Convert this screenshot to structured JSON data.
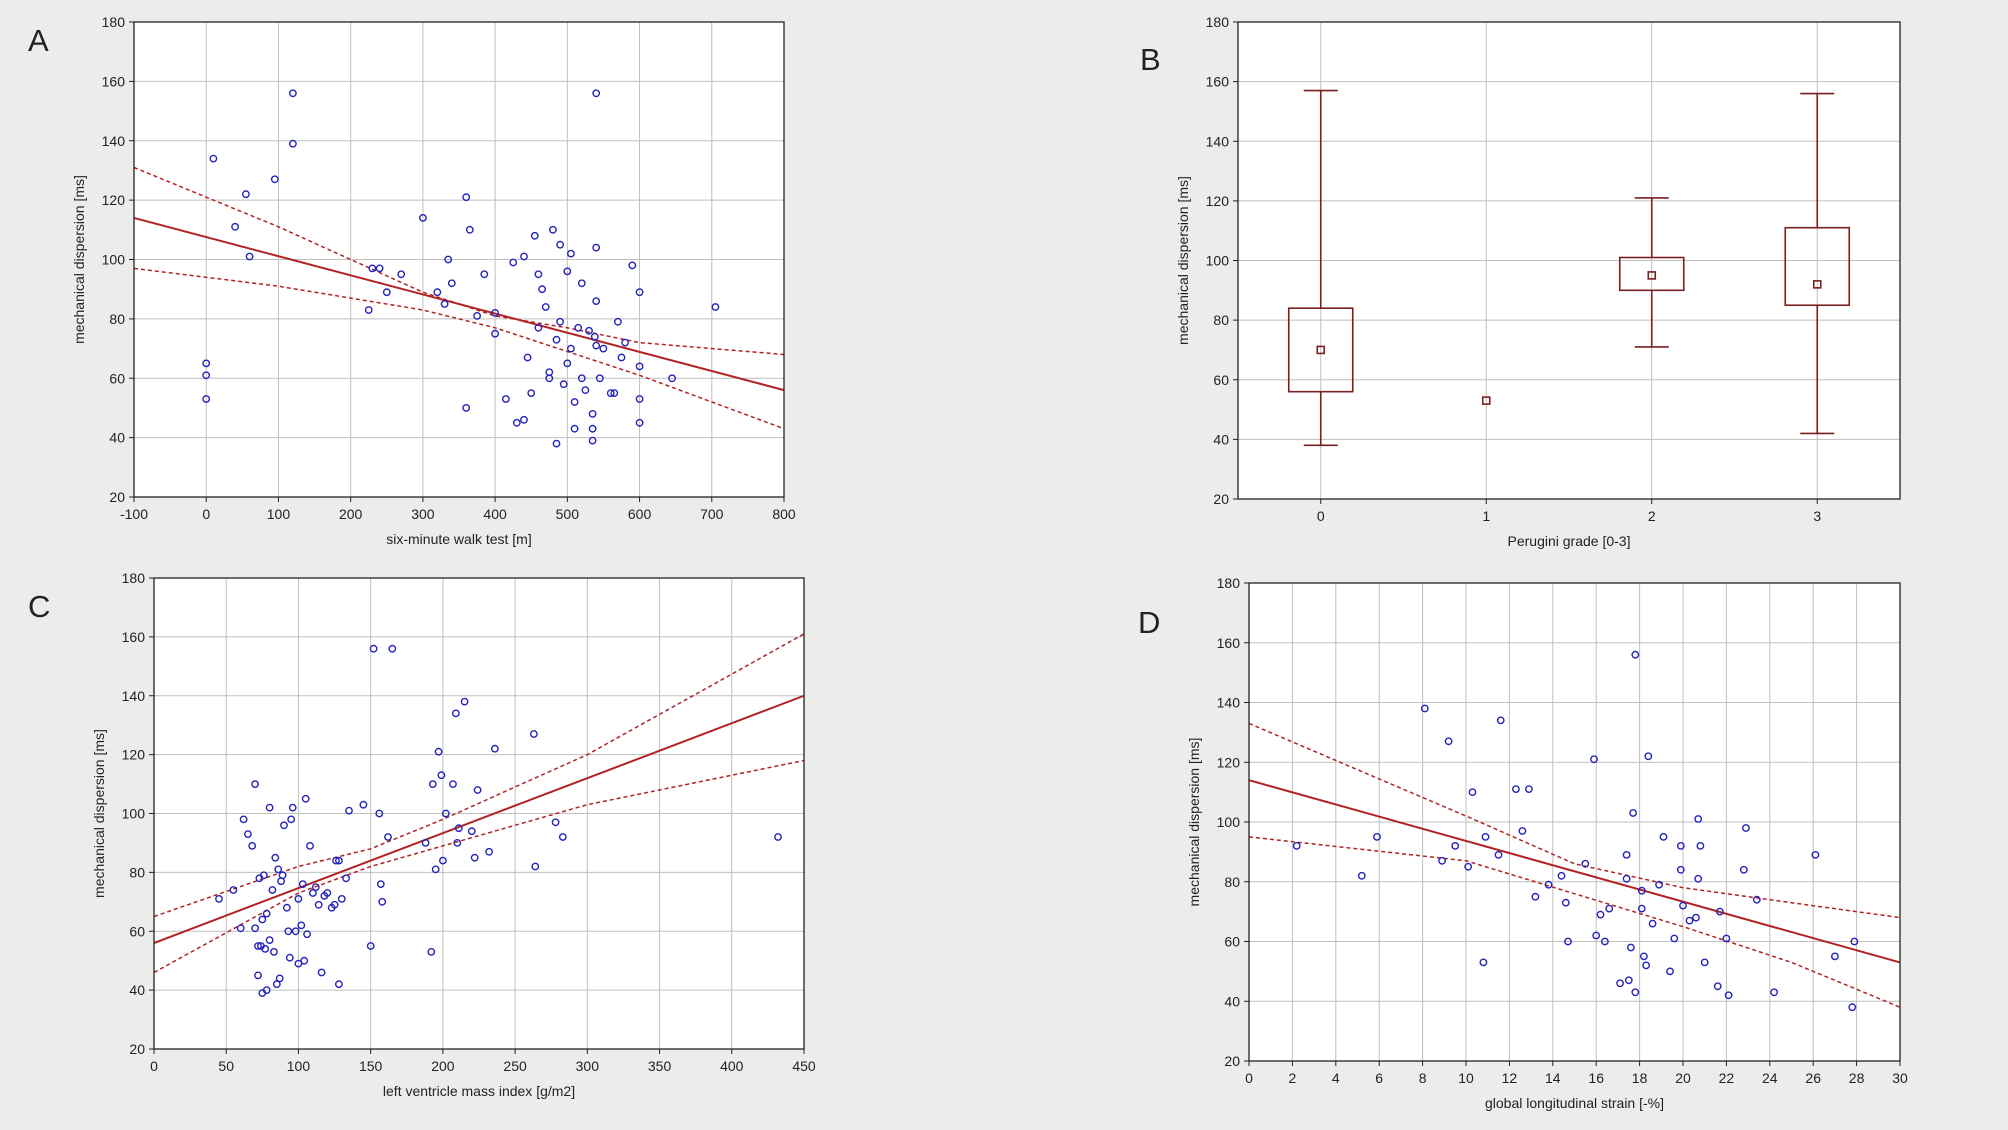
{
  "colors": {
    "background": "#ececea",
    "plot_area": "#ffffff",
    "frame": "#222222",
    "grid": "#bfbfbf",
    "points": "#2222bb",
    "fit_line": "#b22222",
    "boxplot": "#7a1f1f"
  },
  "chart_data": [
    {
      "panel": "A",
      "type": "scatter",
      "title": "",
      "xlabel": "six-minute walk test [m]",
      "ylabel": "mechanical dispersion [ms]",
      "xlim": [
        -100,
        800
      ],
      "ylim": [
        20,
        180
      ],
      "xticks": [
        -100,
        0,
        100,
        200,
        300,
        400,
        500,
        600,
        700,
        800
      ],
      "yticks": [
        20,
        40,
        60,
        80,
        100,
        120,
        140,
        160,
        180
      ],
      "grid": true,
      "legend": "none",
      "regression": {
        "x_range": [
          -100,
          800
        ],
        "y_start": 114,
        "y_end": 56
      },
      "confidence_band": {
        "upper": [
          [
            -100,
            131
          ],
          [
            100,
            111
          ],
          [
            300,
            89
          ],
          [
            400,
            81
          ],
          [
            500,
            77
          ],
          [
            600,
            72
          ],
          [
            800,
            68
          ]
        ],
        "lower": [
          [
            -100,
            97
          ],
          [
            100,
            91
          ],
          [
            300,
            83
          ],
          [
            400,
            77
          ],
          [
            500,
            69
          ],
          [
            600,
            61
          ],
          [
            800,
            43
          ]
        ]
      },
      "points": [
        [
          0,
          65
        ],
        [
          0,
          61
        ],
        [
          0,
          53
        ],
        [
          10,
          134
        ],
        [
          40,
          111
        ],
        [
          55,
          122
        ],
        [
          60,
          101
        ],
        [
          95,
          127
        ],
        [
          120,
          139
        ],
        [
          120,
          156
        ],
        [
          225,
          83
        ],
        [
          230,
          97
        ],
        [
          240,
          97
        ],
        [
          250,
          89
        ],
        [
          270,
          95
        ],
        [
          300,
          114
        ],
        [
          320,
          89
        ],
        [
          330,
          85
        ],
        [
          335,
          100
        ],
        [
          340,
          92
        ],
        [
          360,
          50
        ],
        [
          360,
          121
        ],
        [
          365,
          110
        ],
        [
          375,
          81
        ],
        [
          385,
          95
        ],
        [
          400,
          82
        ],
        [
          400,
          75
        ],
        [
          415,
          53
        ],
        [
          425,
          99
        ],
        [
          430,
          45
        ],
        [
          440,
          46
        ],
        [
          440,
          101
        ],
        [
          445,
          67
        ],
        [
          450,
          55
        ],
        [
          455,
          108
        ],
        [
          460,
          77
        ],
        [
          460,
          95
        ],
        [
          465,
          90
        ],
        [
          470,
          84
        ],
        [
          475,
          60
        ],
        [
          475,
          62
        ],
        [
          480,
          110
        ],
        [
          485,
          38
        ],
        [
          485,
          73
        ],
        [
          490,
          105
        ],
        [
          490,
          79
        ],
        [
          495,
          58
        ],
        [
          500,
          96
        ],
        [
          500,
          65
        ],
        [
          505,
          102
        ],
        [
          505,
          70
        ],
        [
          510,
          52
        ],
        [
          510,
          43
        ],
        [
          515,
          77
        ],
        [
          520,
          92
        ],
        [
          520,
          60
        ],
        [
          525,
          56
        ],
        [
          530,
          76
        ],
        [
          535,
          48
        ],
        [
          535,
          39
        ],
        [
          535,
          43
        ],
        [
          538,
          74
        ],
        [
          540,
          104
        ],
        [
          540,
          86
        ],
        [
          540,
          71
        ],
        [
          540,
          156
        ],
        [
          545,
          60
        ],
        [
          550,
          70
        ],
        [
          560,
          55
        ],
        [
          565,
          55
        ],
        [
          570,
          79
        ],
        [
          575,
          67
        ],
        [
          580,
          72
        ],
        [
          590,
          98
        ],
        [
          600,
          45
        ],
        [
          600,
          53
        ],
        [
          600,
          64
        ],
        [
          600,
          89
        ],
        [
          645,
          60
        ],
        [
          705,
          84
        ]
      ]
    },
    {
      "panel": "B",
      "type": "box",
      "title": "",
      "xlabel": "Perugini grade [0-3]",
      "ylabel": "mechanical dispersion [ms]",
      "xlim": [
        -0.5,
        3.5
      ],
      "ylim": [
        20,
        180
      ],
      "xticks": [
        0,
        1,
        2,
        3
      ],
      "yticks": [
        20,
        40,
        60,
        80,
        100,
        120,
        140,
        160,
        180
      ],
      "grid": true,
      "legend": "none",
      "groups": [
        {
          "x": 0,
          "min": 38,
          "q1": 56,
          "median": 70,
          "q3": 84,
          "max": 157
        },
        {
          "x": 1,
          "min": 53,
          "q1": 53,
          "median": 53,
          "q3": 53,
          "max": 53
        },
        {
          "x": 2,
          "min": 71,
          "q1": 90,
          "median": 95,
          "q3": 101,
          "max": 121
        },
        {
          "x": 3,
          "min": 42,
          "q1": 85,
          "median": 92,
          "q3": 111,
          "max": 156
        }
      ]
    },
    {
      "panel": "C",
      "type": "scatter",
      "title": "",
      "xlabel": "left ventricle mass index [g/m2]",
      "ylabel": "mechanical dispersion [ms]",
      "xlim": [
        0,
        450
      ],
      "ylim": [
        20,
        180
      ],
      "xticks": [
        0,
        50,
        100,
        150,
        200,
        250,
        300,
        350,
        400,
        450
      ],
      "yticks": [
        20,
        40,
        60,
        80,
        100,
        120,
        140,
        160,
        180
      ],
      "grid": true,
      "legend": "none",
      "regression": {
        "x_range": [
          0,
          450
        ],
        "y_start": 56,
        "y_end": 140
      },
      "confidence_band": {
        "upper": [
          [
            0,
            65
          ],
          [
            100,
            82
          ],
          [
            150,
            88
          ],
          [
            200,
            98
          ],
          [
            300,
            120
          ],
          [
            450,
            161
          ]
        ],
        "lower": [
          [
            0,
            46
          ],
          [
            100,
            73
          ],
          [
            150,
            82
          ],
          [
            200,
            89
          ],
          [
            300,
            103
          ],
          [
            450,
            118
          ]
        ]
      },
      "points": [
        [
          45,
          71
        ],
        [
          55,
          74
        ],
        [
          60,
          61
        ],
        [
          62,
          98
        ],
        [
          65,
          93
        ],
        [
          68,
          89
        ],
        [
          70,
          110
        ],
        [
          70,
          61
        ],
        [
          72,
          55
        ],
        [
          72,
          45
        ],
        [
          73,
          78
        ],
        [
          74,
          55
        ],
        [
          75,
          64
        ],
        [
          75,
          39
        ],
        [
          76,
          79
        ],
        [
          77,
          54
        ],
        [
          78,
          66
        ],
        [
          78,
          40
        ],
        [
          80,
          102
        ],
        [
          80,
          57
        ],
        [
          82,
          74
        ],
        [
          83,
          53
        ],
        [
          84,
          85
        ],
        [
          85,
          42
        ],
        [
          86,
          81
        ],
        [
          87,
          44
        ],
        [
          88,
          77
        ],
        [
          89,
          79
        ],
        [
          90,
          96
        ],
        [
          92,
          68
        ],
        [
          93,
          60
        ],
        [
          94,
          51
        ],
        [
          95,
          98
        ],
        [
          96,
          102
        ],
        [
          98,
          60
        ],
        [
          100,
          71
        ],
        [
          100,
          49
        ],
        [
          102,
          62
        ],
        [
          103,
          76
        ],
        [
          104,
          50
        ],
        [
          105,
          105
        ],
        [
          106,
          59
        ],
        [
          108,
          89
        ],
        [
          110,
          73
        ],
        [
          112,
          75
        ],
        [
          114,
          69
        ],
        [
          116,
          46
        ],
        [
          118,
          72
        ],
        [
          120,
          73
        ],
        [
          123,
          68
        ],
        [
          125,
          69
        ],
        [
          126,
          84
        ],
        [
          128,
          42
        ],
        [
          128,
          84
        ],
        [
          130,
          71
        ],
        [
          133,
          78
        ],
        [
          135,
          101
        ],
        [
          145,
          103
        ],
        [
          150,
          55
        ],
        [
          152,
          156
        ],
        [
          156,
          100
        ],
        [
          157,
          76
        ],
        [
          158,
          70
        ],
        [
          162,
          92
        ],
        [
          165,
          156
        ],
        [
          188,
          90
        ],
        [
          192,
          53
        ],
        [
          193,
          110
        ],
        [
          195,
          81
        ],
        [
          197,
          121
        ],
        [
          199,
          113
        ],
        [
          200,
          84
        ],
        [
          202,
          100
        ],
        [
          207,
          110
        ],
        [
          209,
          134
        ],
        [
          210,
          90
        ],
        [
          211,
          95
        ],
        [
          215,
          138
        ],
        [
          220,
          94
        ],
        [
          222,
          85
        ],
        [
          224,
          108
        ],
        [
          232,
          87
        ],
        [
          236,
          122
        ],
        [
          263,
          127
        ],
        [
          264,
          82
        ],
        [
          278,
          97
        ],
        [
          283,
          92
        ],
        [
          432,
          92
        ]
      ]
    },
    {
      "panel": "D",
      "type": "scatter",
      "title": "",
      "xlabel": "global longitudinal strain [-%]",
      "ylabel": "mechanical dispersion [ms]",
      "xlim": [
        0,
        30
      ],
      "ylim": [
        20,
        180
      ],
      "xticks": [
        0,
        2,
        4,
        6,
        8,
        10,
        12,
        14,
        16,
        18,
        20,
        22,
        24,
        26,
        28,
        30
      ],
      "yticks": [
        20,
        40,
        60,
        80,
        100,
        120,
        140,
        160,
        180
      ],
      "grid": true,
      "legend": "none",
      "regression": {
        "x_range": [
          0,
          30
        ],
        "y_start": 114,
        "y_end": 53
      },
      "confidence_band": {
        "upper": [
          [
            0,
            133
          ],
          [
            10,
            102
          ],
          [
            15,
            86
          ],
          [
            20,
            78
          ],
          [
            25,
            73
          ],
          [
            30,
            68
          ]
        ],
        "lower": [
          [
            0,
            95
          ],
          [
            10,
            87
          ],
          [
            15,
            76
          ],
          [
            20,
            65
          ],
          [
            25,
            53
          ],
          [
            30,
            38
          ]
        ]
      },
      "points": [
        [
          2.2,
          92
        ],
        [
          5.2,
          82
        ],
        [
          5.9,
          95
        ],
        [
          8.1,
          138
        ],
        [
          8.9,
          87
        ],
        [
          9.2,
          127
        ],
        [
          9.5,
          92
        ],
        [
          10.1,
          85
        ],
        [
          10.3,
          110
        ],
        [
          10.8,
          53
        ],
        [
          10.9,
          95
        ],
        [
          11.5,
          89
        ],
        [
          11.6,
          134
        ],
        [
          12.3,
          111
        ],
        [
          12.6,
          97
        ],
        [
          12.9,
          111
        ],
        [
          13.2,
          75
        ],
        [
          13.8,
          79
        ],
        [
          14.4,
          82
        ],
        [
          14.6,
          73
        ],
        [
          14.7,
          60
        ],
        [
          15.5,
          86
        ],
        [
          15.9,
          121
        ],
        [
          16.0,
          62
        ],
        [
          16.2,
          69
        ],
        [
          16.4,
          60
        ],
        [
          16.6,
          71
        ],
        [
          17.1,
          46
        ],
        [
          17.4,
          81
        ],
        [
          17.4,
          89
        ],
        [
          17.5,
          47
        ],
        [
          17.6,
          58
        ],
        [
          17.7,
          103
        ],
        [
          17.8,
          156
        ],
        [
          17.8,
          43
        ],
        [
          18.1,
          77
        ],
        [
          18.1,
          71
        ],
        [
          18.2,
          55
        ],
        [
          18.3,
          52
        ],
        [
          18.4,
          122
        ],
        [
          18.6,
          66
        ],
        [
          18.9,
          79
        ],
        [
          19.1,
          95
        ],
        [
          19.4,
          50
        ],
        [
          19.6,
          61
        ],
        [
          19.9,
          84
        ],
        [
          19.9,
          92
        ],
        [
          20.0,
          72
        ],
        [
          20.3,
          67
        ],
        [
          20.6,
          68
        ],
        [
          20.7,
          101
        ],
        [
          20.7,
          81
        ],
        [
          20.8,
          92
        ],
        [
          21.0,
          53
        ],
        [
          21.6,
          45
        ],
        [
          21.7,
          70
        ],
        [
          22.0,
          61
        ],
        [
          22.1,
          42
        ],
        [
          22.8,
          84
        ],
        [
          22.9,
          98
        ],
        [
          23.4,
          74
        ],
        [
          24.2,
          43
        ],
        [
          26.1,
          89
        ],
        [
          27.0,
          55
        ],
        [
          27.8,
          38
        ],
        [
          27.9,
          60
        ]
      ]
    }
  ]
}
